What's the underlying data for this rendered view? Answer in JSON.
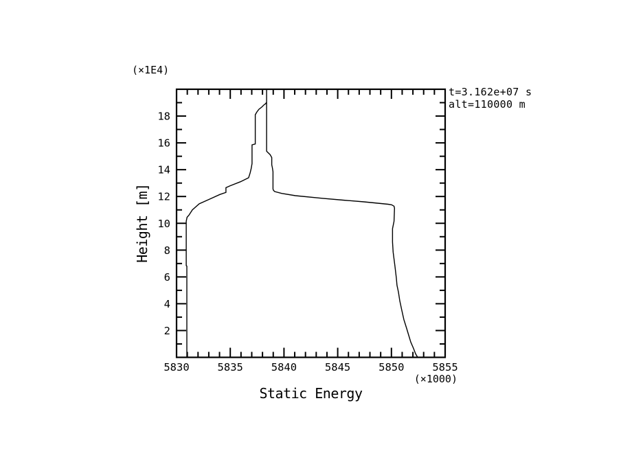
{
  "page": {
    "background_color": "#ffffff",
    "foreground_color": "#000000"
  },
  "chart_data": {
    "type": "line",
    "title": "",
    "xlabel": "Static Energy",
    "ylabel": "Height [m]",
    "x_unit_label": "(×1000)",
    "y_unit_label": "(×1E4)",
    "annotation_lines": [
      "t=3.162e+07 s",
      "alt=110000 m"
    ],
    "xlim": [
      5830,
      5855
    ],
    "ylim": [
      0,
      20
    ],
    "x_major_ticks": [
      5830,
      5835,
      5840,
      5845,
      5850,
      5855
    ],
    "x_minor_tick_step": 1,
    "y_major_ticks": [
      2,
      4,
      6,
      8,
      10,
      12,
      14,
      16,
      18
    ],
    "y_minor_tick_step": 1,
    "grid": false,
    "legend": "none",
    "line_color": "#000000",
    "series": [
      {
        "name": "static_energy_profile",
        "points": [
          [
            5830.96,
            0.0
          ],
          [
            5830.96,
            6.8
          ],
          [
            5830.9,
            6.85
          ],
          [
            5830.9,
            10.15
          ],
          [
            5830.98,
            10.45
          ],
          [
            5831.15,
            10.6
          ],
          [
            5831.47,
            11.0
          ],
          [
            5832.11,
            11.45
          ],
          [
            5833.07,
            11.8
          ],
          [
            5834.03,
            12.15
          ],
          [
            5834.6,
            12.3
          ],
          [
            5834.6,
            12.66
          ],
          [
            5834.99,
            12.8
          ],
          [
            5835.95,
            13.1
          ],
          [
            5836.71,
            13.4
          ],
          [
            5836.85,
            13.75
          ],
          [
            5836.95,
            14.1
          ],
          [
            5837.03,
            14.46
          ],
          [
            5837.03,
            15.85
          ],
          [
            5837.33,
            15.92
          ],
          [
            5837.33,
            18.1
          ],
          [
            5837.48,
            18.31
          ],
          [
            5837.67,
            18.51
          ],
          [
            5837.93,
            18.67
          ],
          [
            5838.12,
            18.82
          ],
          [
            5838.28,
            18.92
          ],
          [
            5838.38,
            19.02
          ],
          [
            5838.38,
            20.0
          ],
          [
            5838.38,
            15.38
          ],
          [
            5838.51,
            15.28
          ],
          [
            5838.7,
            15.13
          ],
          [
            5838.82,
            14.97
          ],
          [
            5838.86,
            14.9
          ],
          [
            5838.86,
            14.36
          ],
          [
            5838.92,
            14.15
          ],
          [
            5838.98,
            13.85
          ],
          [
            5838.98,
            12.56
          ],
          [
            5839.02,
            12.46
          ],
          [
            5839.14,
            12.37
          ],
          [
            5839.78,
            12.23
          ],
          [
            5841.06,
            12.06
          ],
          [
            5843.62,
            11.86
          ],
          [
            5845.5,
            11.73
          ],
          [
            5847.45,
            11.6
          ],
          [
            5849.69,
            11.42
          ],
          [
            5850.01,
            11.38
          ],
          [
            5850.24,
            11.28
          ],
          [
            5850.29,
            11.13
          ],
          [
            5850.24,
            10.15
          ],
          [
            5850.1,
            9.6
          ],
          [
            5850.1,
            8.6
          ],
          [
            5850.16,
            7.85
          ],
          [
            5850.33,
            6.77
          ],
          [
            5850.46,
            5.9
          ],
          [
            5850.52,
            5.38
          ],
          [
            5850.65,
            4.87
          ],
          [
            5850.78,
            4.21
          ],
          [
            5850.97,
            3.49
          ],
          [
            5851.16,
            2.82
          ],
          [
            5851.42,
            2.15
          ],
          [
            5851.61,
            1.64
          ],
          [
            5851.8,
            1.13
          ],
          [
            5852.05,
            0.67
          ],
          [
            5852.25,
            0.26
          ],
          [
            5852.44,
            0.0
          ]
        ]
      }
    ]
  }
}
